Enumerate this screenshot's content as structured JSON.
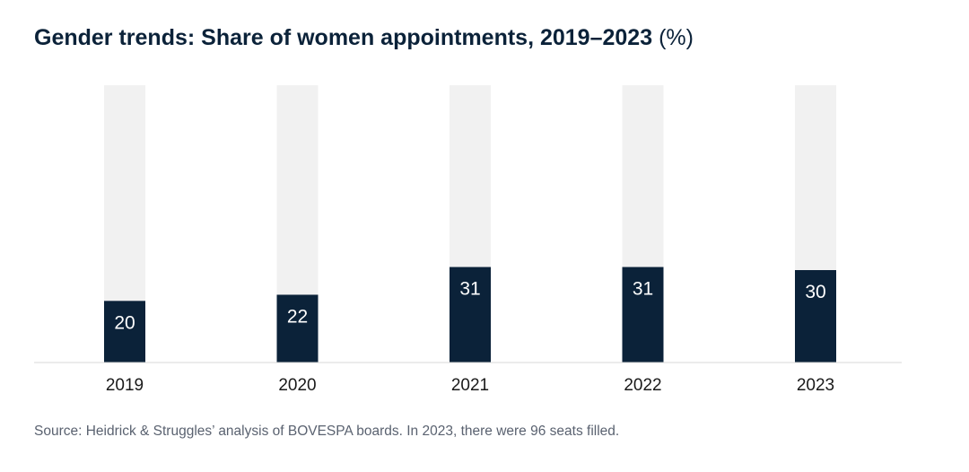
{
  "title": {
    "main": "Gender trends: Share of women appointments, 2019–2023",
    "unit": "(%)"
  },
  "source": "Source: Heidrick & Struggles’ analysis of BOVESPA boards. In 2023, there were 96 seats filled.",
  "chart_data": {
    "type": "bar",
    "title": "Gender trends: Share of women appointments, 2019–2023 (%)",
    "categories": [
      "2019",
      "2020",
      "2021",
      "2022",
      "2023"
    ],
    "values": [
      20,
      22,
      31,
      31,
      30
    ],
    "ylim": [
      0,
      90
    ],
    "grid": false,
    "colors": {
      "bar": "#0b2239",
      "track": "#f1f1f1",
      "axis": "#d9d9d9",
      "label": "#ffffff",
      "tick": "#1a1a1a"
    }
  }
}
